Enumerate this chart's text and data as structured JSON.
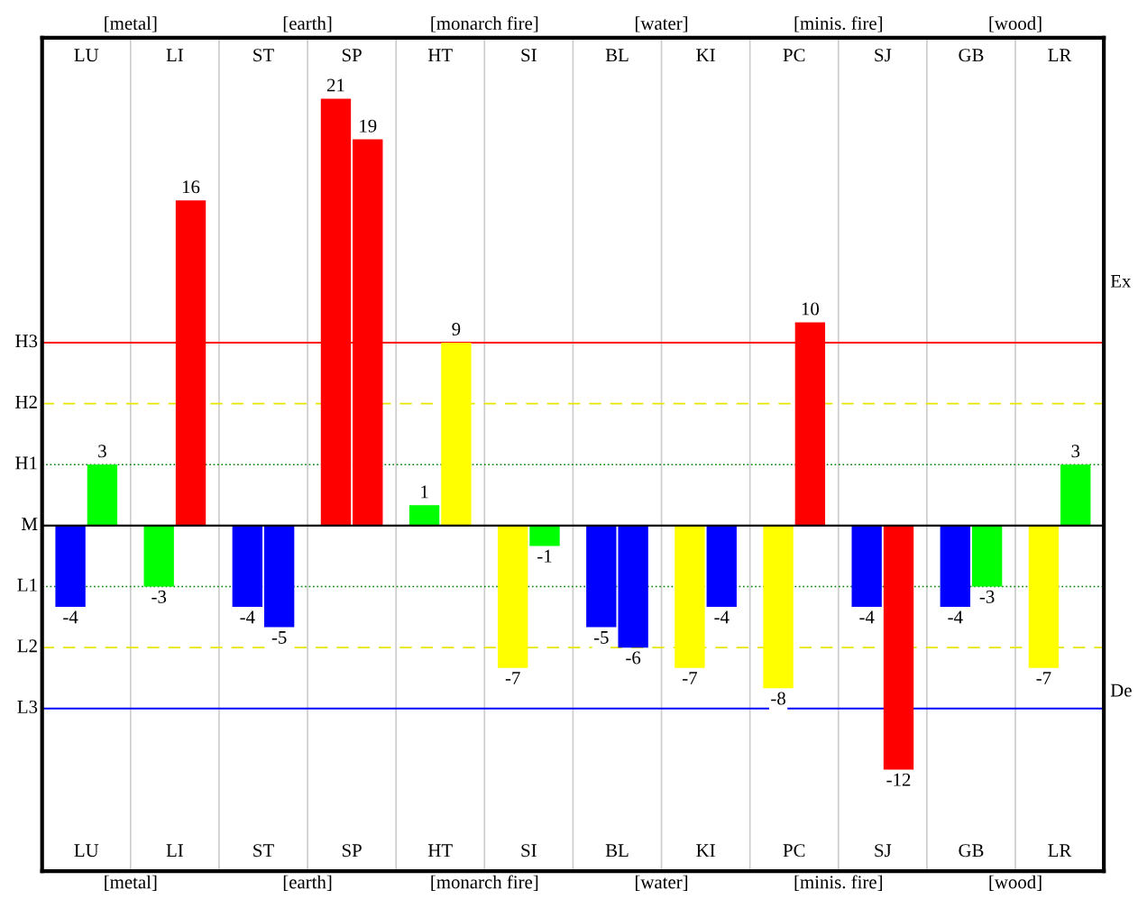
{
  "chart_data": {
    "type": "bar",
    "categories": [
      "LU",
      "LI",
      "ST",
      "SP",
      "HT",
      "SI",
      "BL",
      "KI",
      "PC",
      "SJ",
      "GB",
      "LR"
    ],
    "series": [
      {
        "colors": [
          "#0000ff",
          "#00ff00",
          "#0000ff",
          "#ff0000",
          "#00ff00",
          "#ffff00",
          "#0000ff",
          "#ffff00",
          "#ffff00",
          "#0000ff",
          "#0000ff",
          "#ffff00"
        ],
        "values": [
          -4,
          -3,
          -4,
          21,
          1,
          -7,
          -5,
          -7,
          -8,
          -4,
          -4,
          -7
        ]
      },
      {
        "colors": [
          "#00ff00",
          "#ff0000",
          "#0000ff",
          "#ff0000",
          "#ffff00",
          "#00ff00",
          "#0000ff",
          "#0000ff",
          "#ff0000",
          "#ff0000",
          "#00ff00",
          "#00ff00"
        ],
        "values": [
          3,
          16,
          -5,
          19,
          9,
          -1,
          -6,
          -4,
          10,
          -12,
          -3,
          3
        ]
      }
    ],
    "data_labels": true,
    "ylim": [
      -17,
      24
    ],
    "ref_lines": [
      {
        "axis": "y",
        "value": 9,
        "label": "H3",
        "color": "#ff0000",
        "line_style": "solid"
      },
      {
        "axis": "y",
        "value": 6,
        "label": "H2",
        "color": "#e6e600",
        "line_style": "dashed"
      },
      {
        "axis": "y",
        "value": 3,
        "label": "H1",
        "color": "#008000",
        "line_style": "dotted"
      },
      {
        "axis": "y",
        "value": 0,
        "label": "M",
        "color": "#000000",
        "line_style": "solid"
      },
      {
        "axis": "y",
        "value": -3,
        "label": "L1",
        "color": "#008000",
        "line_style": "dotted"
      },
      {
        "axis": "y",
        "value": -6,
        "label": "L2",
        "color": "#e6e600",
        "line_style": "dashed"
      },
      {
        "axis": "y",
        "value": -9,
        "label": "L3",
        "color": "#0000ff",
        "line_style": "solid"
      }
    ],
    "grid": "x",
    "annotations": [
      "[metal]",
      "[earth]",
      "[monarch fire]",
      "[water]",
      "[minis. fire]",
      "[wood]",
      "Ex",
      "De"
    ]
  }
}
